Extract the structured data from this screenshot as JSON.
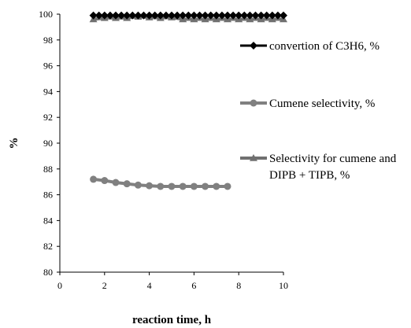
{
  "chart_data": {
    "type": "line",
    "xlabel": "reaction time, h",
    "ylabel": "%",
    "xlim": [
      0,
      10
    ],
    "ylim": [
      80,
      100
    ],
    "xticks": [
      0,
      2,
      4,
      6,
      8,
      10
    ],
    "yticks": [
      80,
      82,
      84,
      86,
      88,
      90,
      92,
      94,
      96,
      98,
      100
    ],
    "grid": false,
    "legend": "right",
    "series": [
      {
        "name": "convertion of C3H6, %",
        "marker": "diamond",
        "color": "#000000",
        "x": [
          1.5,
          1.75,
          2,
          2.25,
          2.5,
          2.75,
          3,
          3.25,
          3.5,
          3.75,
          4,
          4.25,
          4.5,
          4.75,
          5,
          5.25,
          5.5,
          5.75,
          6,
          6.25,
          6.5,
          6.75,
          7,
          7.25,
          7.5,
          7.75,
          8,
          8.25,
          8.5,
          8.75,
          9,
          9.25,
          9.5,
          9.75,
          10
        ],
        "y": [
          99.9,
          99.9,
          99.9,
          99.9,
          99.9,
          99.9,
          99.9,
          99.9,
          99.9,
          99.9,
          99.9,
          99.9,
          99.9,
          99.9,
          99.9,
          99.9,
          99.9,
          99.9,
          99.9,
          99.9,
          99.9,
          99.9,
          99.9,
          99.9,
          99.9,
          99.9,
          99.9,
          99.9,
          99.9,
          99.9,
          99.9,
          99.9,
          99.9,
          99.9,
          99.9
        ]
      },
      {
        "name": "Cumene selectivity, %",
        "marker": "circle",
        "color": "#808080",
        "x": [
          1.5,
          2,
          2.5,
          3,
          3.5,
          4,
          4.5,
          5,
          5.5,
          6,
          6.5,
          7,
          7.5
        ],
        "y": [
          87.2,
          87.1,
          86.95,
          86.85,
          86.75,
          86.7,
          86.65,
          86.65,
          86.65,
          86.65,
          86.65,
          86.65,
          86.65
        ]
      },
      {
        "name": "Selectivity for cumene and DIPB + TIPB, %",
        "marker": "triangle",
        "color": "#707070",
        "x": [
          1.5,
          2,
          2.5,
          3,
          3.5,
          4,
          4.5,
          5,
          5.5,
          6,
          6.5,
          7,
          7.5,
          8,
          8.5,
          9,
          9.5,
          10
        ],
        "y": [
          99.6,
          99.7,
          99.7,
          99.7,
          99.8,
          99.75,
          99.7,
          99.75,
          99.6,
          99.6,
          99.6,
          99.6,
          99.6,
          99.6,
          99.6,
          99.6,
          99.6,
          99.6
        ]
      }
    ]
  },
  "legend": {
    "items": [
      {
        "lines": [
          "convertion of C3H6, %"
        ]
      },
      {
        "lines": [
          "Cumene selectivity, %"
        ]
      },
      {
        "lines": [
          "Selectivity for cumene and",
          "DIPB + TIPB, %"
        ]
      }
    ]
  }
}
